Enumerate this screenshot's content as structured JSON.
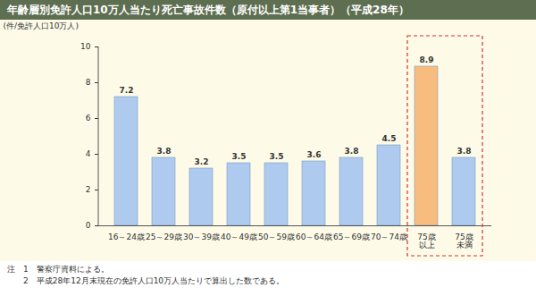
{
  "chart_data": {
    "type": "bar",
    "title": "年齢層別免許人口10万人当たり死亡事故件数（原付以上第1当事者）（平成28年）",
    "ylabel": "(件/免許人口10万人)",
    "categories": [
      "16～24歳",
      "25～29歳",
      "30～39歳",
      "40～49歳",
      "50～59歳",
      "60～64歳",
      "65～69歳",
      "70～74歳",
      "75歳\n以上",
      "75歳\n未満"
    ],
    "values": [
      7.2,
      3.8,
      3.2,
      3.5,
      3.5,
      3.6,
      3.8,
      4.5,
      8.9,
      3.8
    ],
    "colors": [
      "#aecbef",
      "#aecbef",
      "#aecbef",
      "#aecbef",
      "#aecbef",
      "#aecbef",
      "#aecbef",
      "#aecbef",
      "#f8bd7e",
      "#aecbef"
    ],
    "ylim": [
      0,
      10
    ],
    "yticks": [
      0,
      2,
      4,
      6,
      8,
      10
    ],
    "data_labels": true,
    "grid": false,
    "notes": [
      "注　1　警察庁資料による。",
      "　　2　平成28年12月末現在の免許人口10万人当たりで算出した数である。"
    ]
  }
}
